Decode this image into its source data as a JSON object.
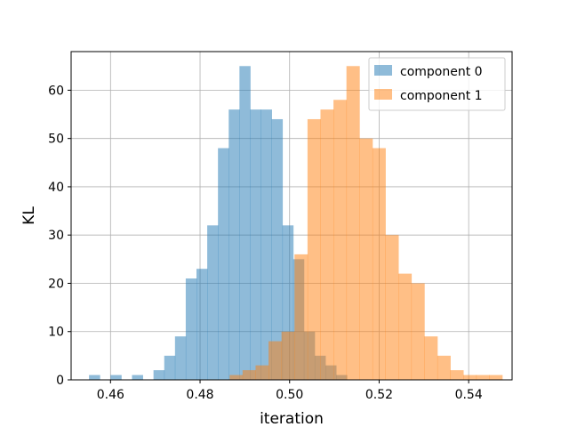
{
  "chart_data": {
    "type": "bar",
    "title": "",
    "xlabel": "iteration",
    "ylabel": "KL",
    "xlim": [
      0.4512,
      0.5497
    ],
    "ylim": [
      0,
      68
    ],
    "xticks": [
      0.46,
      0.48,
      0.5,
      0.52,
      0.54
    ],
    "xtick_labels": [
      "0.46",
      "0.48",
      "0.50",
      "0.52",
      "0.54"
    ],
    "yticks": [
      0,
      10,
      20,
      30,
      40,
      50,
      60
    ],
    "ytick_labels": [
      "0",
      "10",
      "20",
      "30",
      "40",
      "50",
      "60"
    ],
    "grid": true,
    "legend_position": "top-right",
    "series": [
      {
        "name": "component 0",
        "color": "#1f77b4",
        "opacity": 0.5,
        "bins": [
          [
            0.4552,
            0.4576,
            1
          ],
          [
            0.4576,
            0.46,
            0
          ],
          [
            0.46,
            0.4624,
            1
          ],
          [
            0.4624,
            0.4648,
            0
          ],
          [
            0.4648,
            0.4672,
            1
          ],
          [
            0.4672,
            0.4696,
            0
          ],
          [
            0.4696,
            0.472,
            2
          ],
          [
            0.472,
            0.4744,
            5
          ],
          [
            0.4744,
            0.4768,
            9
          ],
          [
            0.4768,
            0.4792,
            21
          ],
          [
            0.4792,
            0.4816,
            23
          ],
          [
            0.4816,
            0.484,
            32
          ],
          [
            0.484,
            0.4864,
            48
          ],
          [
            0.4864,
            0.4888,
            56
          ],
          [
            0.4888,
            0.4912,
            65
          ],
          [
            0.4912,
            0.4936,
            56
          ],
          [
            0.4936,
            0.496,
            56
          ],
          [
            0.496,
            0.4984,
            54
          ],
          [
            0.4984,
            0.5008,
            32
          ],
          [
            0.5008,
            0.5032,
            25
          ],
          [
            0.5032,
            0.5056,
            10
          ],
          [
            0.5056,
            0.508,
            5
          ],
          [
            0.508,
            0.5104,
            3
          ],
          [
            0.5104,
            0.5128,
            1
          ]
        ]
      },
      {
        "name": "component 1",
        "color": "#ff7f0e",
        "opacity": 0.5,
        "bins": [
          [
            0.4866,
            0.4895,
            1
          ],
          [
            0.4895,
            0.4924,
            2
          ],
          [
            0.4924,
            0.4953,
            3
          ],
          [
            0.4953,
            0.4982,
            8
          ],
          [
            0.4982,
            0.5011,
            10
          ],
          [
            0.5011,
            0.504,
            26
          ],
          [
            0.504,
            0.5069,
            54
          ],
          [
            0.5069,
            0.5098,
            56
          ],
          [
            0.5098,
            0.5127,
            58
          ],
          [
            0.5127,
            0.5156,
            65
          ],
          [
            0.5156,
            0.5185,
            50
          ],
          [
            0.5185,
            0.5214,
            48
          ],
          [
            0.5214,
            0.5243,
            30
          ],
          [
            0.5243,
            0.5272,
            22
          ],
          [
            0.5272,
            0.5301,
            20
          ],
          [
            0.5301,
            0.533,
            9
          ],
          [
            0.533,
            0.5359,
            5
          ],
          [
            0.5359,
            0.5388,
            2
          ],
          [
            0.5388,
            0.5417,
            1
          ],
          [
            0.5417,
            0.5446,
            1
          ],
          [
            0.5446,
            0.5475,
            1
          ]
        ]
      }
    ]
  }
}
